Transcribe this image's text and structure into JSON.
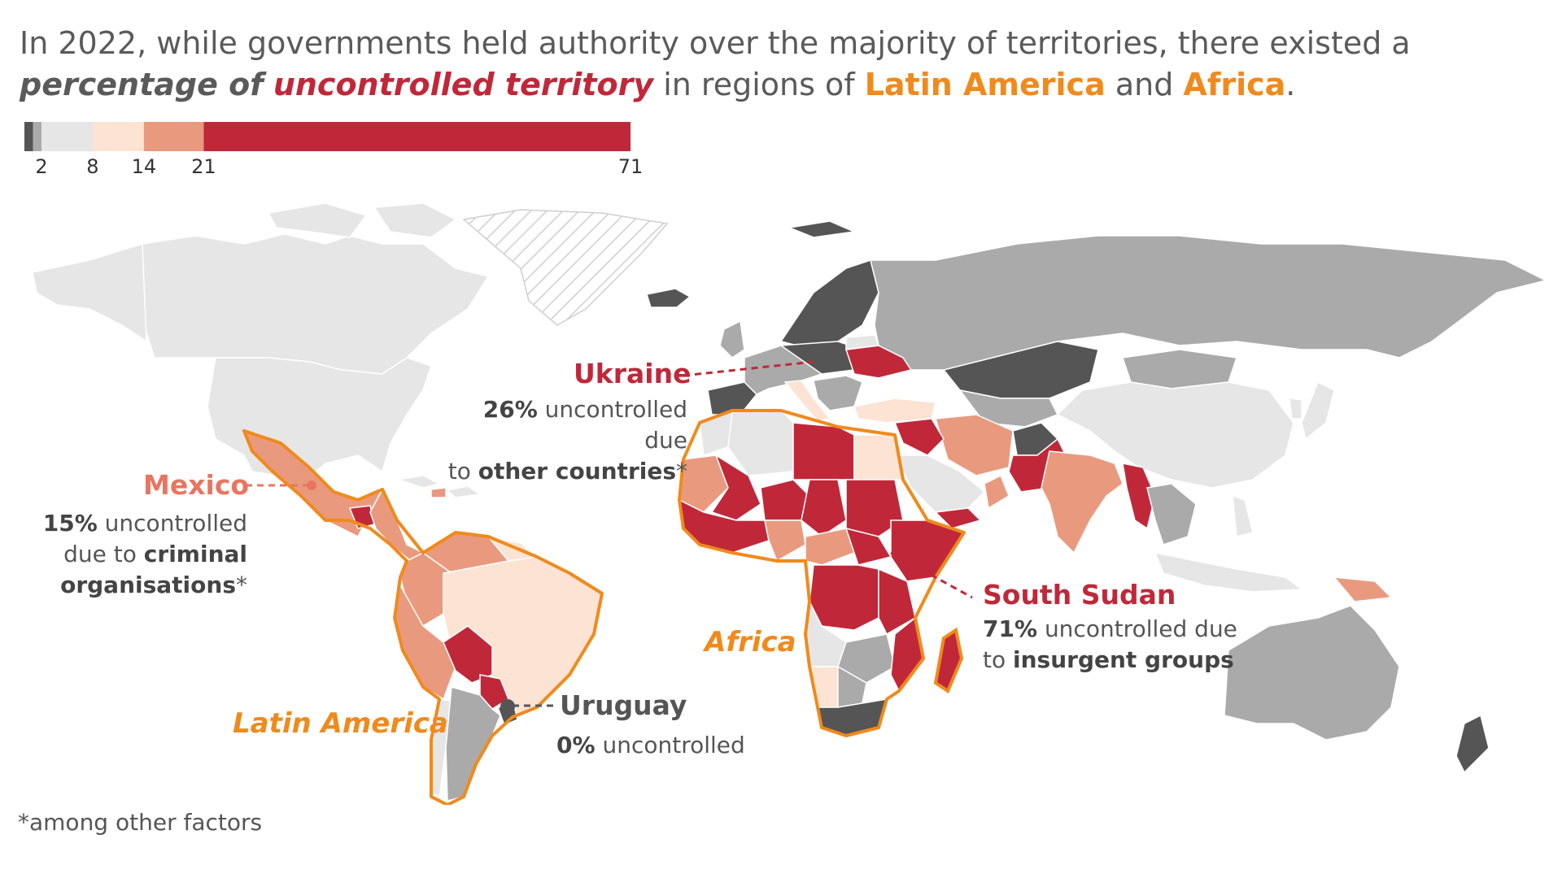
{
  "title": {
    "part1": "In 2022, while governments held authority over the majority of territories, there existed a",
    "emph1": "percentage of",
    "emph2": "uncontrolled territory",
    "part2": "in regions of",
    "region1": "Latin America",
    "and": "and",
    "region2": "Africa",
    "period": "."
  },
  "legend": {
    "ticks": [
      "2",
      "8",
      "14",
      "21",
      "71"
    ],
    "breaks": [
      0,
      1,
      2,
      8,
      14,
      21,
      71
    ],
    "colors": [
      "#555555",
      "#aaaaaa",
      "#e6e6e6",
      "#fde3d4",
      "#e99a7e",
      "#c0283a"
    ]
  },
  "annotations": {
    "ukraine": {
      "name": "Ukraine",
      "pct": "26%",
      "text1": "uncontrolled due",
      "text2": "to",
      "bold2": "other countries",
      "tail": "*",
      "value": 26
    },
    "mexico": {
      "name": "Mexico",
      "pct": "15%",
      "text1": "uncontrolled",
      "text2": "due to",
      "bold2": "criminal",
      "bold3": "organisations",
      "tail": "*",
      "value": 15
    },
    "south_sudan": {
      "name": "South Sudan",
      "pct": "71%",
      "text1": "uncontrolled due",
      "text2": "to",
      "bold2": "insurgent groups",
      "tail": "*",
      "value": 71
    },
    "uruguay": {
      "name": "Uruguay",
      "pct": "0%",
      "text1": "uncontrolled",
      "value": 0
    }
  },
  "region_labels": {
    "latin_america": "Latin America",
    "africa": "Africa"
  },
  "footnote": "*among other factors",
  "colors": {
    "accent_orange": "#f08a1c",
    "highlight_red": "#c0283a",
    "mexico_salmon": "#e87560",
    "text_grey": "#555555"
  }
}
